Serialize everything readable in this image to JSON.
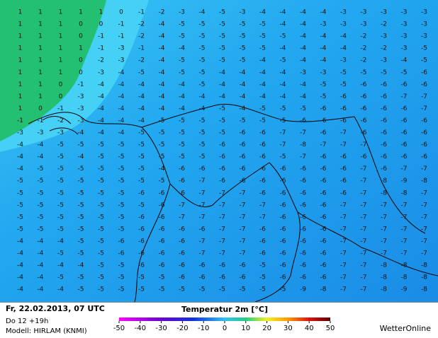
{
  "header": {
    "datetime": "Fr, 22.02.2013, 07 UTC",
    "run": "Do 12 +19h",
    "model": "Modell: HIRLAM (KNMI)"
  },
  "legend": {
    "title": "Temperatur 2m [°C]",
    "ticks": [
      -50,
      -40,
      -30,
      -20,
      -10,
      0,
      10,
      20,
      30,
      40,
      50
    ],
    "lim": [
      -50,
      50
    ]
  },
  "brand": "WetterOnline",
  "grid": {
    "rows": [
      [
        1,
        1,
        1,
        1,
        1,
        0,
        -1,
        -2,
        -3,
        -4,
        -5,
        -3,
        -4,
        -4,
        -4,
        -4,
        -3,
        -3,
        -3,
        -3,
        -3
      ],
      [
        1,
        1,
        1,
        0,
        0,
        -1,
        -2,
        -4,
        -5,
        -5,
        -5,
        -5,
        -5,
        -4,
        -4,
        -3,
        -3,
        -3,
        -2,
        -3,
        -3
      ],
      [
        1,
        1,
        1,
        0,
        -1,
        -1,
        -2,
        -4,
        -5,
        -5,
        -5,
        -5,
        -5,
        -5,
        -4,
        -4,
        -4,
        -2,
        -3,
        -3,
        -3
      ],
      [
        1,
        1,
        1,
        1,
        -1,
        -3,
        -1,
        -4,
        -4,
        -5,
        -5,
        -5,
        -5,
        -4,
        -4,
        -4,
        -4,
        -2,
        -2,
        -3,
        -5
      ],
      [
        1,
        1,
        1,
        0,
        -2,
        -3,
        -2,
        -4,
        -5,
        -5,
        -5,
        -5,
        -4,
        -5,
        -4,
        -4,
        -3,
        -2,
        -3,
        -4,
        -5
      ],
      [
        1,
        1,
        1,
        0,
        -3,
        -4,
        -5,
        -4,
        -5,
        -5,
        -4,
        -4,
        -4,
        -4,
        -3,
        -3,
        -5,
        -5,
        -5,
        -5,
        -6
      ],
      [
        1,
        1,
        0,
        -1,
        -4,
        -4,
        -4,
        -4,
        -4,
        -5,
        -4,
        -4,
        -4,
        -4,
        -4,
        -5,
        -5,
        -6,
        -6,
        -6,
        -6
      ],
      [
        1,
        1,
        0,
        -3,
        -4,
        -4,
        -4,
        -4,
        -4,
        -4,
        -4,
        -4,
        -4,
        -4,
        -4,
        -5,
        -6,
        -6,
        -6,
        -7,
        -7
      ],
      [
        1,
        0,
        -1,
        -3,
        -4,
        -4,
        -4,
        -4,
        -4,
        -4,
        -5,
        -4,
        -5,
        -5,
        -5,
        -6,
        -6,
        -6,
        -6,
        -6,
        -7
      ],
      [
        -1,
        -1,
        -2,
        -3,
        -4,
        -4,
        -4,
        -5,
        -5,
        -5,
        -5,
        -5,
        -5,
        -5,
        -6,
        -6,
        -6,
        -6,
        -6,
        -6,
        -6
      ],
      [
        -3,
        -3,
        -3,
        -4,
        -4,
        -4,
        -5,
        -5,
        -5,
        -5,
        -5,
        -6,
        -6,
        -7,
        -7,
        -6,
        -7,
        -6,
        -6,
        -6,
        -6
      ],
      [
        -4,
        -4,
        -5,
        -5,
        -5,
        -5,
        -5,
        -5,
        -5,
        -5,
        -6,
        -6,
        -6,
        -7,
        -8,
        -7,
        -7,
        -7,
        -6,
        -6,
        -6
      ],
      [
        -4,
        -4,
        -5,
        -4,
        -5,
        -5,
        -5,
        -5,
        -5,
        -5,
        -6,
        -6,
        -6,
        -5,
        -7,
        -6,
        -6,
        -6,
        -6,
        -6,
        -6
      ],
      [
        -4,
        -5,
        -5,
        -5,
        -5,
        -5,
        -5,
        -4,
        -6,
        -6,
        -6,
        -6,
        -6,
        -6,
        -6,
        -6,
        -6,
        -7,
        -6,
        -7,
        -7
      ],
      [
        -5,
        -5,
        -5,
        -5,
        -5,
        -5,
        -5,
        -5,
        -6,
        -7,
        -6,
        -6,
        -6,
        -6,
        -6,
        -6,
        -6,
        -7,
        -8,
        -9,
        -8
      ],
      [
        -5,
        -5,
        -5,
        -5,
        -5,
        -5,
        -6,
        -6,
        -6,
        -7,
        -7,
        -7,
        -6,
        -6,
        -6,
        -6,
        -6,
        -7,
        -8,
        -8,
        -7
      ],
      [
        -5,
        -5,
        -5,
        -5,
        -5,
        -5,
        -5,
        -6,
        -7,
        -7,
        -7,
        -7,
        -7,
        -6,
        -6,
        -6,
        -7,
        -7,
        -7,
        -7,
        -7
      ],
      [
        -5,
        -5,
        -5,
        -5,
        -5,
        -5,
        -6,
        -6,
        -7,
        -7,
        -7,
        -7,
        -7,
        -6,
        -6,
        -6,
        -7,
        -7,
        -7,
        -7,
        -7
      ],
      [
        -5,
        -5,
        -5,
        -5,
        -5,
        -5,
        -6,
        -6,
        -6,
        -6,
        -7,
        -7,
        -6,
        -6,
        -6,
        -6,
        -7,
        -7,
        -7,
        -7,
        -7
      ],
      [
        -4,
        -4,
        -4,
        -5,
        -5,
        -6,
        -6,
        -6,
        -6,
        -7,
        -7,
        -7,
        -6,
        -6,
        -6,
        -6,
        -7,
        -7,
        -7,
        -7,
        -7
      ],
      [
        -4,
        -4,
        -5,
        -5,
        -5,
        -6,
        -6,
        -6,
        -6,
        -7,
        -7,
        -7,
        -6,
        -6,
        -6,
        -6,
        -7,
        -7,
        -7,
        -7,
        -7
      ],
      [
        -4,
        -4,
        -4,
        -4,
        -5,
        -5,
        -6,
        -6,
        -6,
        -6,
        -6,
        -6,
        -5,
        -6,
        -6,
        -6,
        -7,
        -7,
        -8,
        -8,
        -8
      ],
      [
        -4,
        -4,
        -5,
        -5,
        -5,
        -5,
        -5,
        -5,
        -6,
        -6,
        -6,
        -6,
        -5,
        -6,
        -6,
        -6,
        -7,
        -7,
        -8,
        -8,
        -8
      ],
      [
        -4,
        -4,
        -4,
        -5,
        -5,
        -5,
        -5,
        -5,
        -5,
        -5,
        -5,
        -5,
        -5,
        -5,
        -9,
        -8,
        -7,
        -7,
        -8,
        -9,
        -8
      ]
    ]
  }
}
